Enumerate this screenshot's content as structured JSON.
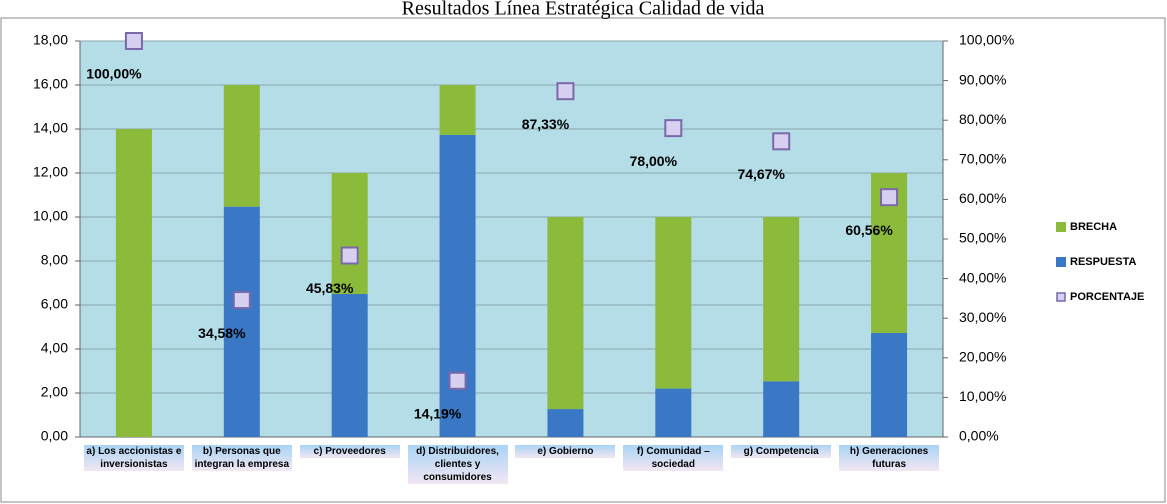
{
  "chart_data": {
    "type": "stacked-bar-scatter",
    "title": "Resultados Línea Estratégica Calidad de vida",
    "categories": [
      "a)  Los accionistas e inversionistas",
      "b) Personas que integran la empresa",
      "c) Proveedores",
      "d) Distribuidores, clientes y consumidores",
      "e) Gobierno",
      "f) Comunidad – sociedad",
      "g) Competencia",
      "h) Generaciones futuras"
    ],
    "series": [
      {
        "name": "RESPUESTA",
        "color": "#3a78c6",
        "values": [
          0,
          10.47,
          6.5,
          13.73,
          1.27,
          2.2,
          2.53,
          4.73
        ]
      },
      {
        "name": "BRECHA",
        "color": "#8cba3a",
        "values": [
          14,
          5.53,
          5.5,
          2.27,
          8.73,
          7.8,
          7.47,
          7.27
        ]
      },
      {
        "name": "PORCENTAJE",
        "color": "#d8d0f0",
        "axis": "y2",
        "values": [
          100,
          34.58,
          45.83,
          14.19,
          87.33,
          78,
          74.67,
          60.56
        ],
        "value_labels": [
          "100,00%",
          "34,58%",
          "45,83%",
          "14,19%",
          "87,33%",
          "78,00%",
          "74,67%",
          "60,56%"
        ]
      }
    ],
    "ylim": [
      0,
      18
    ],
    "yticks": [
      {
        "value": 0,
        "label": "0,00"
      },
      {
        "value": 2,
        "label": "2,00"
      },
      {
        "value": 4,
        "label": "4,00"
      },
      {
        "value": 6,
        "label": "6,00"
      },
      {
        "value": 8,
        "label": "8,00"
      },
      {
        "value": 10,
        "label": "10,00"
      },
      {
        "value": 12,
        "label": "12,00"
      },
      {
        "value": 14,
        "label": "14,00"
      },
      {
        "value": 16,
        "label": "16,00"
      },
      {
        "value": 18,
        "label": "18,00"
      }
    ],
    "y2lim": [
      0,
      100
    ],
    "y2ticks": [
      {
        "value": 0,
        "label": "0,00%"
      },
      {
        "value": 10,
        "label": "10,00%"
      },
      {
        "value": 20,
        "label": "20,00%"
      },
      {
        "value": 30,
        "label": "30,00%"
      },
      {
        "value": 40,
        "label": "40,00%"
      },
      {
        "value": 50,
        "label": "50,00%"
      },
      {
        "value": 60,
        "label": "60,00%"
      },
      {
        "value": 70,
        "label": "70,00%"
      },
      {
        "value": 80,
        "label": "80,00%"
      },
      {
        "value": 90,
        "label": "90,00%"
      },
      {
        "value": 100,
        "label": "100,00%"
      }
    ],
    "grid": true
  }
}
